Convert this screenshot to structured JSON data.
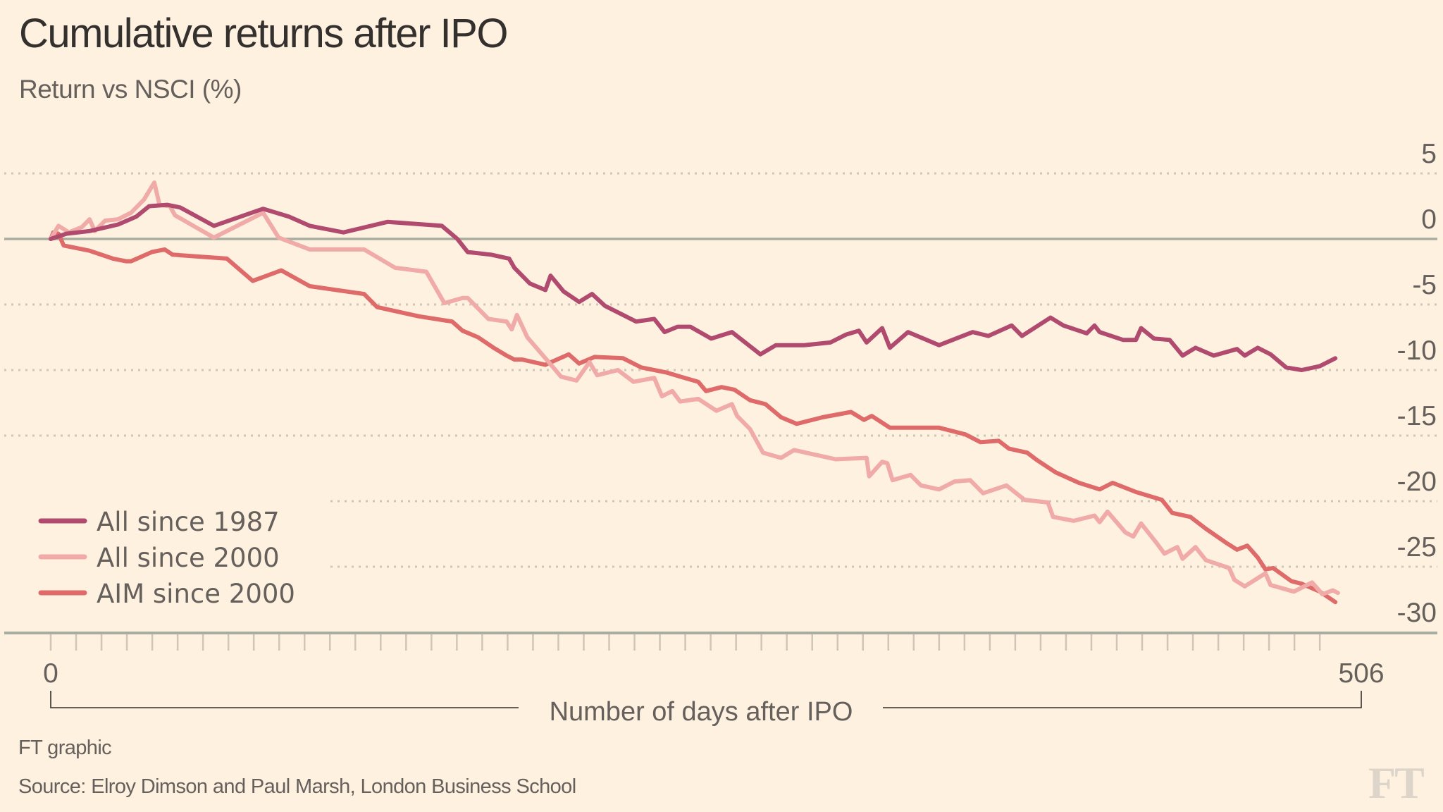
{
  "header": {
    "title": "Cumulative returns after IPO",
    "subtitle": "Return vs NSCI (%)"
  },
  "footer": {
    "credit": "FT graphic",
    "source": "Source: Elroy Dimson and Paul Marsh, London Business School",
    "logo": "FT"
  },
  "chart_data": {
    "type": "line",
    "title": "Cumulative returns after IPO",
    "subtitle": "Return vs NSCI (%)",
    "xlabel": "Number of days after IPO",
    "ylabel": "Return vs NSCI (%)",
    "xlim": [
      0,
      506
    ],
    "ylim": [
      -30,
      5
    ],
    "x_tick_labels": [
      "0",
      "506"
    ],
    "y_ticks": [
      5,
      0,
      -5,
      -10,
      -15,
      -20,
      -25,
      -30
    ],
    "y_tick_labels": [
      "5",
      "0",
      "-5",
      "-10",
      "-15",
      "-20",
      "-25",
      "-30"
    ],
    "grid": "horizontal dotted",
    "legend_position": "bottom-left",
    "series": [
      {
        "name": "All since 1987",
        "color": "#b04a6e",
        "x": [
          0,
          6,
          15,
          26,
          33,
          38,
          45,
          50,
          63,
          82,
          92,
          100,
          113,
          130,
          151,
          157,
          161,
          170,
          177,
          179,
          185,
          191,
          193,
          198,
          204,
          209,
          214,
          226,
          233,
          237,
          242,
          247,
          255,
          263,
          274,
          280,
          291,
          301,
          307,
          312,
          315,
          321,
          324,
          331,
          343,
          356,
          362,
          371,
          375,
          386,
          391,
          400,
          403,
          405,
          414,
          419,
          421,
          426,
          432,
          437,
          442,
          449,
          458,
          461,
          466,
          471,
          477,
          483,
          490,
          496
        ],
        "y": [
          0,
          0.4,
          0.6,
          1.1,
          1.7,
          2.5,
          2.6,
          2.4,
          1.0,
          2.3,
          1.7,
          1.0,
          0.5,
          1.3,
          1.0,
          0.0,
          -1.0,
          -1.2,
          -1.5,
          -2.2,
          -3.4,
          -3.9,
          -2.8,
          -4.0,
          -4.8,
          -4.2,
          -5.1,
          -6.3,
          -6.1,
          -7.1,
          -6.7,
          -6.7,
          -7.6,
          -7.1,
          -8.8,
          -8.1,
          -8.1,
          -7.9,
          -7.3,
          -7.0,
          -7.9,
          -6.8,
          -8.3,
          -7.1,
          -8.1,
          -7.1,
          -7.4,
          -6.6,
          -7.4,
          -6.0,
          -6.6,
          -7.2,
          -6.6,
          -7.1,
          -7.7,
          -7.7,
          -6.8,
          -7.6,
          -7.7,
          -8.9,
          -8.3,
          -8.9,
          -8.4,
          -8.9,
          -8.3,
          -8.8,
          -9.8,
          -10.0,
          -9.7,
          -9.1
        ]
      },
      {
        "name": "All since 2000",
        "color": "#f0aaa8",
        "x": [
          0,
          3,
          7,
          12,
          15,
          17,
          21,
          26,
          31,
          36,
          40,
          42,
          46,
          48,
          63,
          82,
          88,
          100,
          121,
          133,
          145,
          152,
          159,
          161,
          169,
          176,
          178,
          180,
          184,
          191,
          197,
          203,
          208,
          211,
          219,
          225,
          233,
          236,
          240,
          243,
          250,
          257,
          263,
          265,
          270,
          275,
          282,
          287,
          303,
          315,
          316,
          321,
          323,
          325,
          332,
          336,
          343,
          349,
          355,
          360,
          369,
          376,
          385,
          387,
          395,
          403,
          405,
          408,
          415,
          418,
          421,
          427,
          430,
          435,
          437,
          442,
          446,
          455,
          457,
          461,
          469,
          471,
          480,
          487,
          491,
          495,
          497
        ],
        "y": [
          0,
          1.0,
          0.5,
          0.9,
          1.5,
          0.6,
          1.4,
          1.5,
          2.0,
          3.0,
          4.3,
          2.6,
          2.5,
          1.8,
          0.1,
          2.0,
          0.1,
          -0.8,
          -0.8,
          -2.2,
          -2.5,
          -4.9,
          -4.5,
          -4.5,
          -6.1,
          -6.3,
          -6.9,
          -5.8,
          -7.5,
          -9.1,
          -10.5,
          -10.8,
          -9.4,
          -10.4,
          -10.0,
          -10.9,
          -10.6,
          -12.0,
          -11.6,
          -12.4,
          -12.2,
          -13.1,
          -12.6,
          -13.5,
          -14.5,
          -16.3,
          -16.7,
          -16.1,
          -16.8,
          -16.7,
          -18.1,
          -17.0,
          -17.1,
          -18.4,
          -18.0,
          -18.8,
          -19.1,
          -18.5,
          -18.4,
          -19.4,
          -18.8,
          -19.9,
          -20.1,
          -21.2,
          -21.5,
          -21.1,
          -21.6,
          -20.8,
          -22.4,
          -22.7,
          -21.7,
          -23.2,
          -24.0,
          -23.5,
          -24.4,
          -23.5,
          -24.5,
          -25.1,
          -26.0,
          -26.5,
          -25.5,
          -26.4,
          -26.9,
          -26.2,
          -27.1,
          -26.8,
          -27.0
        ]
      },
      {
        "name": "AIM since 2000",
        "color": "#de6a6a",
        "x": [
          0,
          1,
          3,
          5,
          15,
          24,
          29,
          31,
          39,
          44,
          47,
          68,
          78,
          89,
          100,
          121,
          126,
          142,
          155,
          159,
          165,
          171,
          176,
          179,
          182,
          191,
          192,
          200,
          204,
          210,
          221,
          228,
          238,
          243,
          250,
          253,
          259,
          264,
          270,
          276,
          282,
          288,
          298,
          309,
          314,
          317,
          324,
          332,
          343,
          353,
          359,
          366,
          370,
          377,
          381,
          388,
          397,
          405,
          410,
          419,
          429,
          433,
          440,
          446,
          454,
          458,
          462,
          466,
          469,
          472,
          479,
          483,
          490,
          496
        ],
        "y": [
          0,
          0.5,
          0.4,
          -0.5,
          -0.9,
          -1.5,
          -1.7,
          -1.7,
          -1.0,
          -0.8,
          -1.2,
          -1.5,
          -3.2,
          -2.4,
          -3.6,
          -4.2,
          -5.2,
          -5.9,
          -6.3,
          -7.0,
          -7.5,
          -8.3,
          -8.9,
          -9.2,
          -9.2,
          -9.6,
          -9.5,
          -8.8,
          -9.5,
          -9.0,
          -9.1,
          -9.8,
          -10.2,
          -10.5,
          -10.9,
          -11.6,
          -11.3,
          -11.5,
          -12.3,
          -12.6,
          -13.6,
          -14.1,
          -13.6,
          -13.2,
          -13.8,
          -13.5,
          -14.4,
          -14.4,
          -14.4,
          -14.9,
          -15.5,
          -15.4,
          -16.0,
          -16.3,
          -16.9,
          -17.8,
          -18.6,
          -19.1,
          -18.6,
          -19.3,
          -19.9,
          -20.9,
          -21.2,
          -22.1,
          -23.2,
          -23.7,
          -23.4,
          -24.3,
          -25.2,
          -25.1,
          -26.1,
          -26.3,
          -26.9,
          -27.7
        ]
      }
    ]
  }
}
